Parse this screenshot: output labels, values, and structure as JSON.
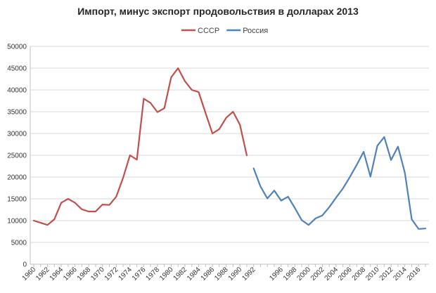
{
  "chart_data": {
    "type": "line",
    "title": "Импорт, минус экспорт продовольствия  в долларах 2013",
    "xlabel": "",
    "ylabel": "",
    "ylim": [
      0,
      50000
    ],
    "yticks": [
      0,
      5000,
      10000,
      15000,
      20000,
      25000,
      30000,
      35000,
      40000,
      45000,
      50000
    ],
    "xlim": [
      1960,
      2017
    ],
    "x_tick_labels": [
      "1960",
      "1962",
      "1964",
      "1966",
      "1968",
      "1970",
      "1972",
      "1974",
      "1976",
      "1978",
      "1980",
      "1982",
      "1984",
      "1986",
      "1988",
      "1990",
      "1992",
      "1996",
      "1998",
      "2000",
      "2002",
      "2004",
      "2006",
      "2008",
      "2010",
      "2012",
      "2014",
      "2016"
    ],
    "grid": "horizontal",
    "legend_position": "top-center",
    "series": [
      {
        "name": "СССР",
        "color": "#C0504D",
        "points": [
          [
            1960,
            10000
          ],
          [
            1961,
            9500
          ],
          [
            1962,
            9000
          ],
          [
            1963,
            10300
          ],
          [
            1964,
            14100
          ],
          [
            1965,
            15000
          ],
          [
            1966,
            14100
          ],
          [
            1967,
            12600
          ],
          [
            1968,
            12100
          ],
          [
            1969,
            12100
          ],
          [
            1970,
            13700
          ],
          [
            1971,
            13600
          ],
          [
            1972,
            15500
          ],
          [
            1973,
            19800
          ],
          [
            1974,
            25000
          ],
          [
            1975,
            24000
          ],
          [
            1976,
            38000
          ],
          [
            1977,
            37000
          ],
          [
            1978,
            34900
          ],
          [
            1979,
            35800
          ],
          [
            1980,
            42900
          ],
          [
            1981,
            45000
          ],
          [
            1982,
            42000
          ],
          [
            1983,
            40000
          ],
          [
            1984,
            39500
          ],
          [
            1985,
            34700
          ],
          [
            1986,
            30000
          ],
          [
            1987,
            31000
          ],
          [
            1988,
            33600
          ],
          [
            1989,
            35000
          ],
          [
            1990,
            32000
          ],
          [
            1991,
            25000
          ]
        ]
      },
      {
        "name": "Россия",
        "color": "#4F81BD",
        "points": [
          [
            1992,
            22000
          ],
          [
            1993,
            17800
          ],
          [
            1994,
            15100
          ],
          [
            1995,
            16900
          ],
          [
            1996,
            14600
          ],
          [
            1997,
            15500
          ],
          [
            1998,
            12900
          ],
          [
            1999,
            10100
          ],
          [
            2000,
            9000
          ],
          [
            2001,
            10500
          ],
          [
            2002,
            11200
          ],
          [
            2003,
            13100
          ],
          [
            2004,
            15300
          ],
          [
            2005,
            17400
          ],
          [
            2006,
            20000
          ],
          [
            2007,
            22800
          ],
          [
            2008,
            25800
          ],
          [
            2009,
            20100
          ],
          [
            2010,
            27200
          ],
          [
            2011,
            29200
          ],
          [
            2012,
            23900
          ],
          [
            2013,
            27000
          ],
          [
            2014,
            21000
          ],
          [
            2015,
            10300
          ],
          [
            2016,
            8100
          ],
          [
            2017,
            8200
          ]
        ]
      }
    ]
  }
}
